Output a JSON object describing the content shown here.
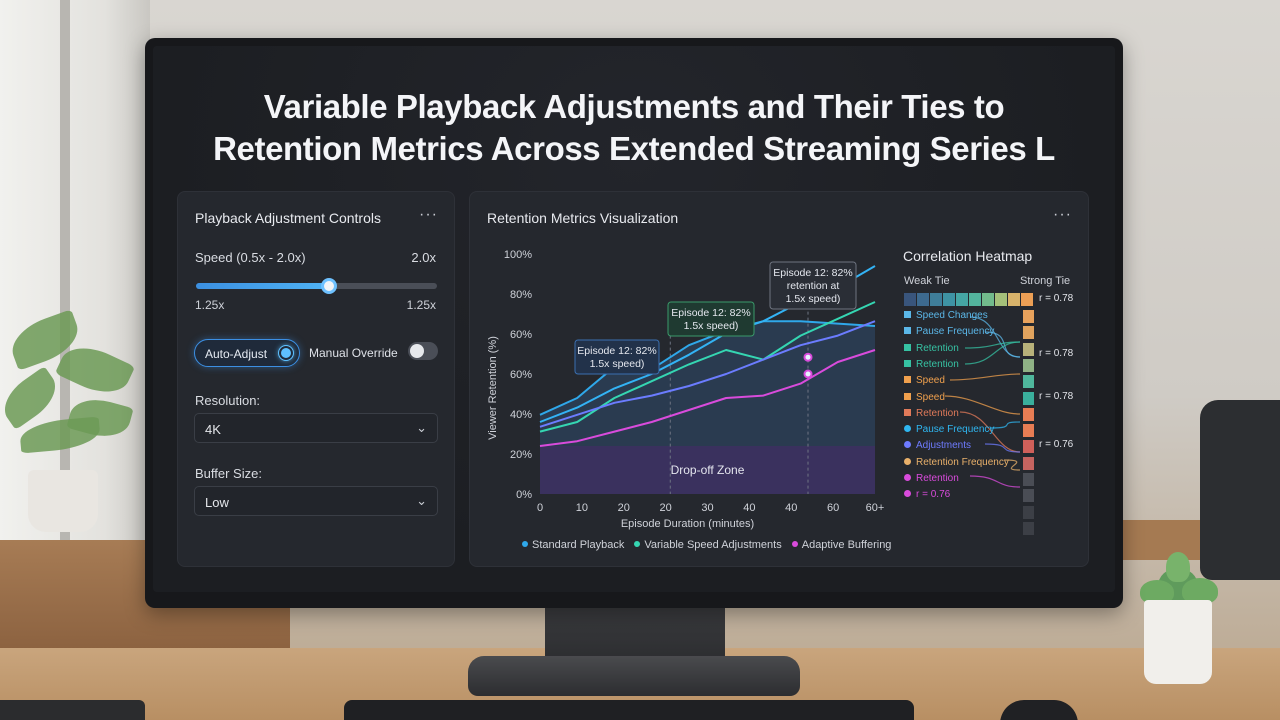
{
  "title_line1": "Variable Playback Adjustments and Their Ties to",
  "title_line2": "Retention Metrics Across Extended Streaming Series L",
  "controls": {
    "header": "Playback Adjustment Controls",
    "menu": "···",
    "speed_label": "Speed (0.5x - 2.0x)",
    "speed_max_label": "2.0x",
    "slider_value_fraction": 0.55,
    "slider_min_label": "1.25x",
    "slider_max_label": "1.25x",
    "auto_adjust_label": "Auto-Adjust",
    "manual_override_label": "Manual Override",
    "manual_override_on": false,
    "resolution_label": "Resolution:",
    "resolution_value": "4K",
    "buffer_label": "Buffer Size:",
    "buffer_value": "Low"
  },
  "viz": {
    "header": "Retention Metrics Visualization",
    "menu": "···",
    "zone_label": "Drop-off Zone",
    "callouts": [
      {
        "x": 20,
        "y": 53,
        "lines": [
          "Episode 12: 82%",
          "1.5x speed)"
        ],
        "color": "#3a8fe0"
      },
      {
        "x": 35,
        "y": 68,
        "lines": [
          "Episode 12: 82%",
          "1.5x speed)"
        ],
        "color": "#3fae7d"
      },
      {
        "x": 42,
        "y": 85,
        "lines": [
          "Episode 12: 82%",
          "retention at",
          "1.5x speed)"
        ],
        "color": "#8a9099"
      }
    ]
  },
  "chart_data": {
    "type": "line",
    "xlabel": "Episode Duration (minutes)",
    "ylabel": "Viewer Retention (%)",
    "x_tick_labels": [
      "0",
      "10",
      "20",
      "20",
      "30",
      "40",
      "40",
      "60",
      "60+"
    ],
    "y_tick_labels": [
      "100%",
      "80%",
      "60%",
      "60%",
      "40%",
      "20%",
      "0%"
    ],
    "ylim": [
      0,
      100
    ],
    "x": [
      0,
      10,
      20,
      30,
      40,
      50,
      60,
      70,
      80,
      90
    ],
    "series": [
      {
        "name": "Standard Playback",
        "color": "#2fa8ea",
        "values": [
          33,
          40,
          53,
          52,
          62,
          68,
          72,
          72,
          71,
          70
        ]
      },
      {
        "name": "Variable Speed Adjustments",
        "color": "#35d6b2",
        "values": [
          26,
          30,
          40,
          47,
          54,
          60,
          56,
          66,
          73,
          80
        ]
      },
      {
        "name": "Adaptive Buffering",
        "color": "#d94bdc",
        "values": [
          20,
          22,
          26,
          30,
          35,
          40,
          41,
          46,
          55,
          60
        ]
      },
      {
        "name": "",
        "color": "#6b7cff",
        "values": [
          28,
          33,
          38,
          41,
          45,
          50,
          56,
          62,
          66,
          72
        ]
      },
      {
        "name": "",
        "color": "#33b3f5",
        "values": [
          30,
          36,
          44,
          50,
          58,
          67,
          72,
          80,
          86,
          95
        ]
      }
    ],
    "drop_off_zone": [
      0,
      20
    ],
    "grid": false,
    "legend": "bottom"
  },
  "heatmap": {
    "title": "Correlation Heatmap",
    "weak_label": "Weak Tie",
    "strong_label": "Strong Tie",
    "scale_colors": [
      "#39557c",
      "#3d6a8f",
      "#3f7e9a",
      "#3e93a4",
      "#45a6a4",
      "#53b49d",
      "#72bb8c",
      "#a5c07a",
      "#d8b36b",
      "#ec9f55"
    ],
    "items": [
      {
        "label": "Speed Changes",
        "color": "#5bb7e8",
        "marker": "square"
      },
      {
        "label": "Pause Frequency",
        "color": "#5bb7e8",
        "marker": "square"
      },
      {
        "label": "Retention",
        "color": "#36c2a3",
        "marker": "square"
      },
      {
        "label": "Retention",
        "color": "#36c2a3",
        "marker": "square"
      },
      {
        "label": "Speed",
        "color": "#f0a04d",
        "marker": "square"
      },
      {
        "label": "Speed",
        "color": "#f0a04d",
        "marker": "square"
      },
      {
        "label": "Retention",
        "color": "#e07a5a",
        "marker": "square"
      },
      {
        "label": "Pause Frequency",
        "color": "#2fb6f0",
        "marker": "circle"
      },
      {
        "label": "Adjustments",
        "color": "#6e7bff",
        "marker": "circle"
      },
      {
        "label": "Retention Frequency",
        "color": "#e8b06a",
        "marker": "circle"
      },
      {
        "label": "Retention",
        "color": "#d94bdc",
        "marker": "circle"
      },
      {
        "label": "r = 0.76",
        "color": "#d94bdc",
        "marker": "circle"
      }
    ],
    "r_labels": [
      "r = 0.78",
      "r = 0.78",
      "r = 0.78",
      "r = 0.76"
    ],
    "column_colors": [
      "#e8a25c",
      "#e0a35e",
      "#b8b27a",
      "#8fb285",
      "#4fb79c",
      "#3aaf9c",
      "#e87d54",
      "#e87d54",
      "#d0605a",
      "#c66460",
      "#4a4d55",
      "#4a4d55",
      "#3c3f46",
      "#3c3f46"
    ]
  }
}
